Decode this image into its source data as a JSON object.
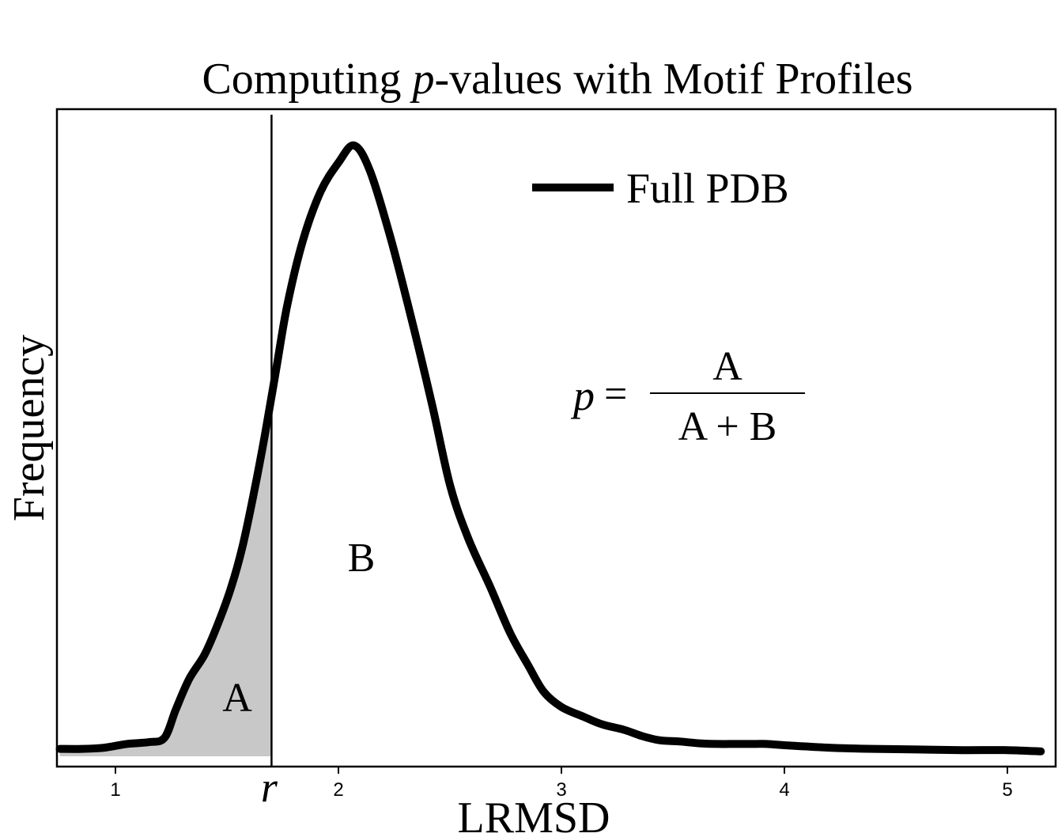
{
  "chart_data": {
    "type": "line",
    "title_prefix": "Computing ",
    "title_italic": "p",
    "title_suffix": "-values with Motif Profiles",
    "xlabel": "LRMSD",
    "ylabel": "Frequency",
    "xlim": [
      0.75,
      5.2
    ],
    "ylim": [
      0,
      1.0
    ],
    "xticks": [
      "1",
      "2",
      "3",
      "4",
      "5"
    ],
    "xtick_values": [
      1,
      2,
      3,
      4,
      5
    ],
    "grid": false,
    "legend": {
      "position": "top-right",
      "label": "Full PDB"
    },
    "series": [
      {
        "name": "Full PDB",
        "color": "#000000",
        "x": [
          0.75,
          0.85,
          0.95,
          1.05,
          1.15,
          1.22,
          1.27,
          1.33,
          1.4,
          1.46,
          1.52,
          1.57,
          1.62,
          1.67,
          1.72,
          1.77,
          1.84,
          1.92,
          2.0,
          2.07,
          2.14,
          2.23,
          2.32,
          2.42,
          2.5,
          2.58,
          2.68,
          2.77,
          2.85,
          2.92,
          3.0,
          3.1,
          3.18,
          3.28,
          3.36,
          3.44,
          3.53,
          3.62,
          3.7,
          3.78,
          3.85,
          3.92,
          4.0,
          4.2,
          4.4,
          4.6,
          4.8,
          5.0,
          5.15
        ],
        "y": [
          0.012,
          0.012,
          0.014,
          0.02,
          0.023,
          0.03,
          0.075,
          0.125,
          0.165,
          0.215,
          0.275,
          0.34,
          0.425,
          0.52,
          0.625,
          0.73,
          0.835,
          0.915,
          0.962,
          0.99,
          0.95,
          0.845,
          0.72,
          0.57,
          0.44,
          0.355,
          0.275,
          0.2,
          0.148,
          0.105,
          0.08,
          0.064,
          0.052,
          0.043,
          0.033,
          0.026,
          0.024,
          0.021,
          0.02,
          0.02,
          0.02,
          0.02,
          0.018,
          0.014,
          0.012,
          0.011,
          0.01,
          0.01,
          0.008
        ]
      }
    ],
    "threshold": {
      "x": 1.7,
      "label": "r"
    },
    "regions": {
      "left_label": "A",
      "right_label": "B",
      "shade_color": "#c8c8c8"
    },
    "formula": {
      "lhs": "p",
      "equals": "=",
      "numerator": "A",
      "denominator": "A + B"
    }
  }
}
